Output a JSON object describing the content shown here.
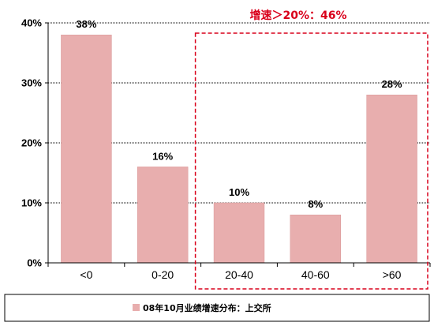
{
  "chart_data": {
    "type": "bar",
    "categories": [
      "<0",
      "0-20",
      "20-40",
      "40-60",
      ">60"
    ],
    "series": [
      {
        "name": "08年10月业绩增速分布：上交所",
        "values": [
          38,
          16,
          10,
          8,
          28
        ]
      }
    ],
    "data_labels": [
      "38%",
      "16%",
      "10%",
      "8%",
      "28%"
    ],
    "ylim": [
      0,
      40
    ],
    "yticks": [
      0,
      10,
      20,
      30,
      40
    ],
    "ytick_labels": [
      "0%",
      "10%",
      "20%",
      "30%",
      "40%"
    ],
    "grid": true,
    "legend_position": "bottom",
    "annotation": {
      "text": "增速＞20%：46%",
      "category_range": [
        2,
        4
      ]
    }
  },
  "colors": {
    "bar": "#e8aeae",
    "bar_border": "#d99696",
    "axis": "#000000",
    "grid": "#000000",
    "annotation": "#d9001b"
  }
}
